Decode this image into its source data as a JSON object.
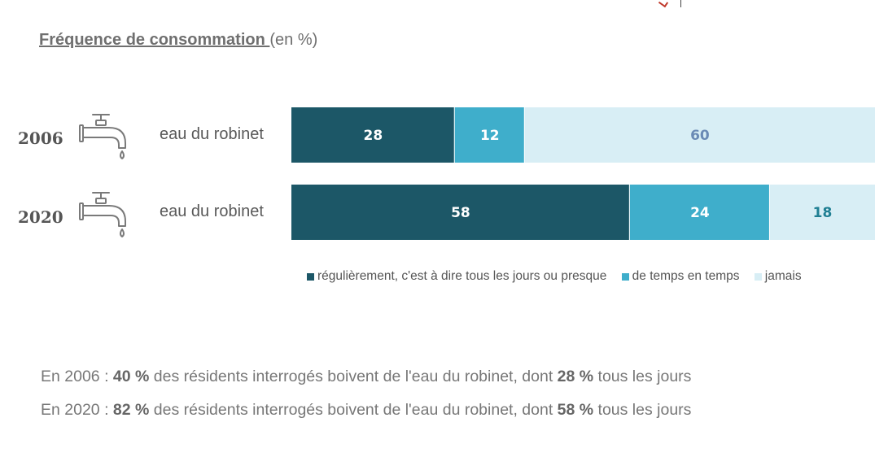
{
  "title": {
    "main": "Fréquence de consommation ",
    "unit": "(en %)"
  },
  "colors": {
    "regulier": "#1c5767",
    "temps": "#3faecb",
    "jamais": "#d8eef5",
    "label_light": "#ffffff",
    "label_jamais_2006": "#6a8ab5",
    "label_jamais_2020": "#1f7f93"
  },
  "icons": [
    "faucet-icon",
    "faucet-icon"
  ],
  "rows": [
    {
      "year": "2006",
      "label": "eau du robinet"
    },
    {
      "year": "2020",
      "label": "eau du robinet"
    }
  ],
  "chart_data": {
    "type": "bar",
    "orientation": "horizontal",
    "stacked": true,
    "categories": [
      "2006",
      "2020"
    ],
    "series": [
      {
        "name": "régulièrement, c'est à dire tous les jours ou presque",
        "values": [
          28,
          58
        ],
        "color": "#1c5767"
      },
      {
        "name": "de temps en temps",
        "values": [
          12,
          24
        ],
        "color": "#3faecb"
      },
      {
        "name": "jamais",
        "values": [
          60,
          18
        ],
        "color": "#d8eef5"
      }
    ],
    "xlim": [
      0,
      100
    ],
    "legend_position": "bottom",
    "grid": false
  },
  "summary": [
    {
      "prefix": "En 2006 : ",
      "pct_total": "40 %",
      "middle": " des résidents interrogés boivent de l'eau du robinet, dont ",
      "pct_daily": "28 %",
      "suffix": " tous les jours"
    },
    {
      "prefix": "En 2020 : ",
      "pct_total": "82 %",
      "middle": " des résidents interrogés boivent de l'eau du robinet, dont ",
      "pct_daily": "58 %",
      "suffix": " tous les jours"
    }
  ]
}
